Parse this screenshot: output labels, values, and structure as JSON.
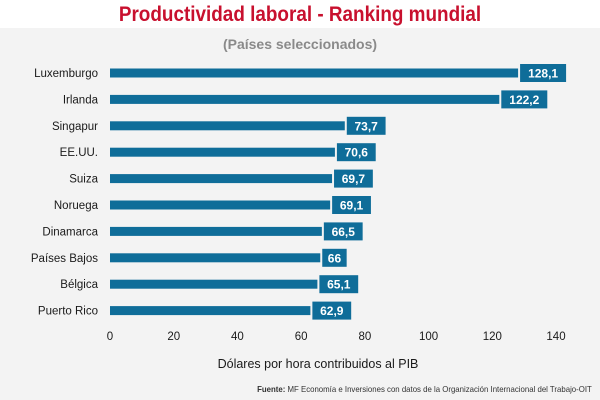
{
  "header": {
    "title": "Productividad laboral - Ranking mundial",
    "subtitle": "(Países seleccionados)"
  },
  "footer": {
    "source_label": "Fuente:",
    "source_text": " MF Economía e Inversiones con datos de la Organización Internacional del Trabajo-OIT"
  },
  "colors": {
    "bar": "#0f6d99",
    "label_box": "#0f6d99",
    "title": "#c8102e"
  },
  "chart_data": {
    "type": "bar",
    "orientation": "horizontal",
    "title": "Productividad laboral - Ranking mundial",
    "subtitle": "(Países seleccionados)",
    "xlabel": "Dólares por hora contribuidos al PIB",
    "ylabel": "",
    "xlim": [
      0,
      140
    ],
    "xticks": [
      0,
      20,
      40,
      60,
      80,
      100,
      120,
      140
    ],
    "grid": false,
    "legend": "none",
    "categories": [
      "Luxemburgo",
      "Irlanda",
      "Singapur",
      "EE.UU.",
      "Suiza",
      "Noruega",
      "Dinamarca",
      "Países Bajos",
      "Bélgica",
      "Puerto Rico"
    ],
    "values": [
      128.1,
      122.2,
      73.7,
      70.6,
      69.7,
      69.1,
      66.5,
      66,
      65.1,
      62.9
    ],
    "value_labels": [
      "128,1",
      "122,2",
      "73,7",
      "70,6",
      "69,7",
      "69,1",
      "66,5",
      "66",
      "65,1",
      "62,9"
    ]
  }
}
